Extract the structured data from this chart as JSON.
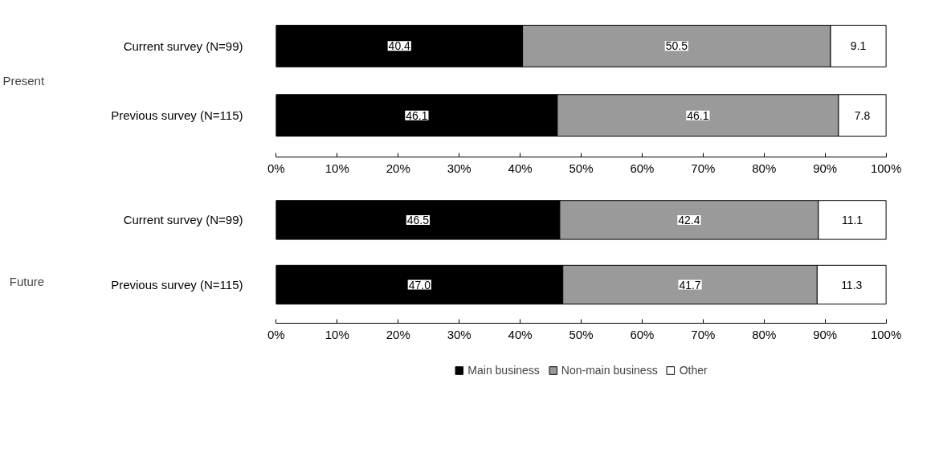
{
  "chart_data": [
    {
      "type": "bar",
      "orientation": "horizontal",
      "stacked": true,
      "ylabel": "Present",
      "categories": [
        "Current survey (N=99)",
        "Previous survey (N=115)"
      ],
      "series": [
        {
          "color": "#000000",
          "values": [
            40.4,
            46.1
          ],
          "value_labels": [
            "40.4",
            "46.1"
          ]
        },
        {
          "color": "#9a9a9a",
          "values": [
            50.5,
            46.1
          ],
          "value_labels": [
            "50.5",
            "46.1"
          ]
        },
        {
          "color": "#ffffff",
          "values": [
            9.1,
            7.8
          ],
          "value_labels": [
            "9.1",
            "7.8"
          ]
        }
      ],
      "xlim": [
        0,
        100
      ],
      "xticks": [
        {
          "value": 0,
          "label": "0%"
        },
        {
          "value": 10,
          "label": "10%"
        },
        {
          "value": 20,
          "label": "20%"
        },
        {
          "value": 30,
          "label": "30%"
        },
        {
          "value": 40,
          "label": "40%"
        },
        {
          "value": 50,
          "label": "50%"
        },
        {
          "value": 60,
          "label": "60%"
        },
        {
          "value": 70,
          "label": "70%"
        },
        {
          "value": 80,
          "label": "80%"
        },
        {
          "value": 90,
          "label": "90%"
        },
        {
          "value": 100,
          "label": "100%"
        }
      ],
      "grid": false,
      "legend": false
    },
    {
      "type": "bar",
      "orientation": "horizontal",
      "stacked": true,
      "ylabel": "Future",
      "categories": [
        "Current survey (N=99)",
        "Previous survey (N=115)"
      ],
      "series": [
        {
          "name": "Main business",
          "color": "#000000",
          "values": [
            46.5,
            47.0
          ],
          "value_labels": [
            "46.5",
            "47.0"
          ]
        },
        {
          "name": "Non-main business",
          "color": "#9a9a9a",
          "values": [
            42.4,
            41.7
          ],
          "value_labels": [
            "42.4",
            "41.7"
          ]
        },
        {
          "name": "Other",
          "color": "#ffffff",
          "values": [
            11.1,
            11.3
          ],
          "value_labels": [
            "11.1",
            "11.3"
          ]
        }
      ],
      "xlim": [
        0,
        100
      ],
      "xticks": [
        {
          "value": 0,
          "label": "0%"
        },
        {
          "value": 10,
          "label": "10%"
        },
        {
          "value": 20,
          "label": "20%"
        },
        {
          "value": 30,
          "label": "30%"
        },
        {
          "value": 40,
          "label": "40%"
        },
        {
          "value": 50,
          "label": "50%"
        },
        {
          "value": 60,
          "label": "60%"
        },
        {
          "value": 70,
          "label": "70%"
        },
        {
          "value": 80,
          "label": "80%"
        },
        {
          "value": 90,
          "label": "90%"
        },
        {
          "value": 100,
          "label": "100%"
        }
      ],
      "grid": false,
      "legend": "bottom"
    }
  ]
}
